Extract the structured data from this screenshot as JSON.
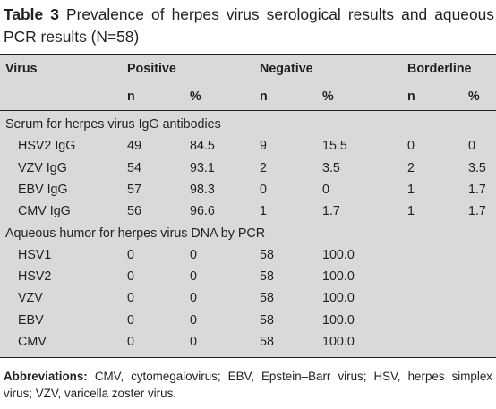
{
  "caption": {
    "label": "Table 3",
    "text": "Prevalence of herpes virus serological results and aqueous PCR results (N=58)"
  },
  "header": {
    "virus": "Virus",
    "positive": "Positive",
    "negative": "Negative",
    "borderline": "Borderline",
    "n": "n",
    "pct": "%"
  },
  "sections": [
    {
      "title": "Serum for herpes virus IgG antibodies",
      "rows": [
        {
          "virus": "HSV2 IgG",
          "pos_n": "49",
          "pos_pct": "84.5",
          "neg_n": "9",
          "neg_pct": "15.5",
          "bor_n": "0",
          "bor_pct": "0"
        },
        {
          "virus": "VZV IgG",
          "pos_n": "54",
          "pos_pct": "93.1",
          "neg_n": "2",
          "neg_pct": "3.5",
          "bor_n": "2",
          "bor_pct": "3.5"
        },
        {
          "virus": "EBV IgG",
          "pos_n": "57",
          "pos_pct": "98.3",
          "neg_n": "0",
          "neg_pct": "0",
          "bor_n": "1",
          "bor_pct": "1.7"
        },
        {
          "virus": "CMV IgG",
          "pos_n": "56",
          "pos_pct": "96.6",
          "neg_n": "1",
          "neg_pct": "1.7",
          "bor_n": "1",
          "bor_pct": "1.7"
        }
      ]
    },
    {
      "title": "Aqueous humor for herpes virus DNA by PCR",
      "rows": [
        {
          "virus": "HSV1",
          "pos_n": "0",
          "pos_pct": "0",
          "neg_n": "58",
          "neg_pct": "100.0",
          "bor_n": "",
          "bor_pct": ""
        },
        {
          "virus": "HSV2",
          "pos_n": "0",
          "pos_pct": "0",
          "neg_n": "58",
          "neg_pct": "100.0",
          "bor_n": "",
          "bor_pct": ""
        },
        {
          "virus": "VZV",
          "pos_n": "0",
          "pos_pct": "0",
          "neg_n": "58",
          "neg_pct": "100.0",
          "bor_n": "",
          "bor_pct": ""
        },
        {
          "virus": "EBV",
          "pos_n": "0",
          "pos_pct": "0",
          "neg_n": "58",
          "neg_pct": "100.0",
          "bor_n": "",
          "bor_pct": ""
        },
        {
          "virus": "CMV",
          "pos_n": "0",
          "pos_pct": "0",
          "neg_n": "58",
          "neg_pct": "100.0",
          "bor_n": "",
          "bor_pct": ""
        }
      ]
    }
  ],
  "footnote": {
    "label": "Abbreviations:",
    "text": "CMV, cytomegalovirus; EBV, Epstein–Barr virus; HSV, herpes simplex virus; VZV, varicella zoster virus."
  },
  "colors": {
    "table_background": "#d9d9da",
    "text": "#231f20"
  }
}
